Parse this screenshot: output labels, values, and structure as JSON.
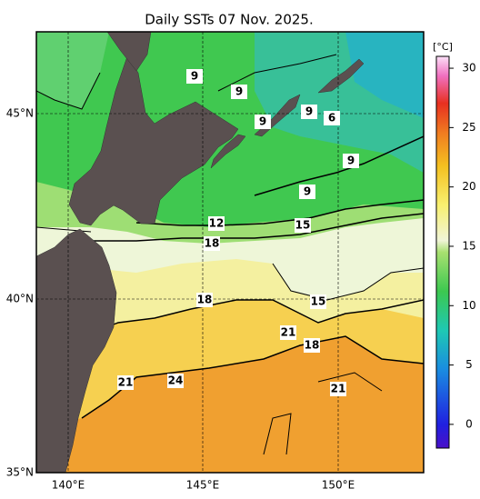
{
  "title": "Daily SSTs 07 Nov. 2025.",
  "lat_labels": [
    "35°N",
    "40°N",
    "45°N"
  ],
  "lon_labels": [
    "140°E",
    "145°E",
    "150°E"
  ],
  "colorbar": {
    "unit": "[°C]",
    "range": [
      -2,
      31
    ],
    "ticks": [
      0,
      5,
      10,
      15,
      20,
      25,
      30
    ]
  },
  "contour_labels": [
    "9",
    "9",
    "9",
    "6",
    "9",
    "9",
    "9",
    "12",
    "15",
    "18",
    "15",
    "18",
    "21",
    "18",
    "21",
    "24",
    "21"
  ]
}
